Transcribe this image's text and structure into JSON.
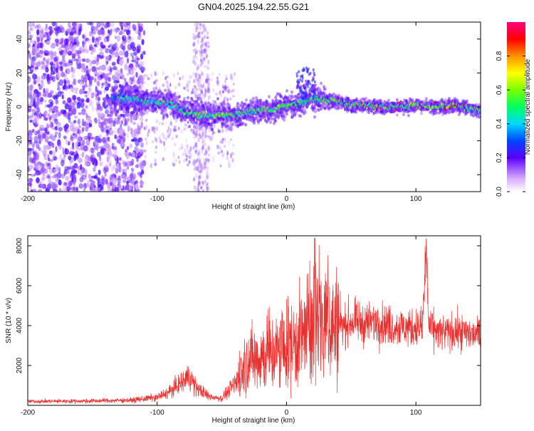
{
  "title": "GN04.2025.194.22.55.G21",
  "colors": {
    "snr_line": "#e8302e",
    "spectrogram_base": "#8a2be2"
  },
  "chart_data": [
    {
      "type": "heatmap",
      "xlabel": "Height of straight line (km)",
      "ylabel": "Frequency (Hz)",
      "xlim": [
        -200,
        150
      ],
      "ylim": [
        -50,
        50
      ],
      "xticks": [
        -200,
        -100,
        0,
        100
      ],
      "yticks": [
        -40,
        -20,
        0,
        20,
        40
      ],
      "colorbar": {
        "label": "Normalized spectral amplitude",
        "range": [
          0,
          1
        ],
        "ticks": [
          "0.0",
          "0.2",
          "0.4",
          "0.6",
          "0.8"
        ]
      },
      "ridge": {
        "x": [
          -135,
          -120,
          -105,
          -90,
          -80,
          -70,
          -60,
          -50,
          -40,
          -30,
          -20,
          -10,
          0,
          10,
          20,
          30,
          40,
          50,
          60,
          70,
          80,
          90,
          100,
          110,
          120,
          130,
          140,
          150
        ],
        "y": [
          5,
          5,
          3,
          2,
          -2,
          -4,
          -5,
          -5,
          -5,
          -3,
          -2,
          -1,
          1,
          2,
          5,
          4,
          3,
          1,
          1,
          0,
          0,
          0,
          1,
          0,
          0,
          1,
          -1,
          -2
        ]
      }
    },
    {
      "type": "line",
      "xlabel": "Height of straight line (km)",
      "ylabel": "SNR (10 * v/v)",
      "xlim": [
        -200,
        150
      ],
      "ylim": [
        0,
        8500
      ],
      "xticks": [
        -200,
        -100,
        0,
        100
      ],
      "yticks": [
        2000,
        4000,
        6000,
        8000
      ],
      "envelope": {
        "x": [
          -200,
          -150,
          -120,
          -100,
          -90,
          -80,
          -75,
          -70,
          -60,
          -50,
          -45,
          -40,
          -35,
          -30,
          -20,
          -10,
          0,
          10,
          20,
          25,
          30,
          40,
          50,
          60,
          70,
          80,
          90,
          100,
          105,
          108,
          110,
          120,
          130,
          140,
          150
        ],
        "y": [
          200,
          220,
          260,
          400,
          700,
          1200,
          1500,
          900,
          450,
          350,
          700,
          1100,
          1600,
          2200,
          2500,
          2600,
          2800,
          3300,
          3900,
          4800,
          4200,
          3900,
          4200,
          4100,
          4200,
          4000,
          3900,
          3900,
          3900,
          7800,
          3900,
          3600,
          3700,
          3600,
          3500
        ]
      }
    }
  ]
}
